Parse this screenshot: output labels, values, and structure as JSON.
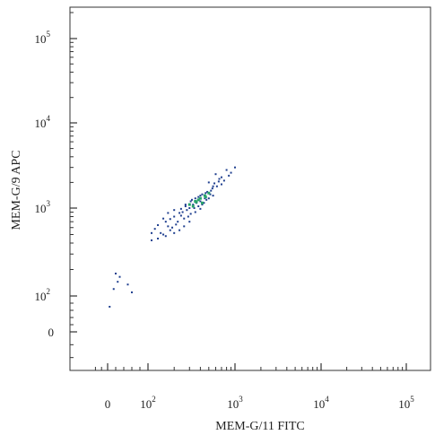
{
  "chart_data": {
    "type": "scatter",
    "title": "",
    "xlabel": "MEM-G/11 FITC",
    "ylabel": "MEM-G/9 APC",
    "x_scale": "biexponential",
    "y_scale": "biexponential",
    "xlim": [
      -50,
      200000
    ],
    "ylim": [
      -60,
      200000
    ],
    "x_ticks": [
      {
        "value": 0,
        "label": "0",
        "sup": ""
      },
      {
        "value": 100,
        "label": "10",
        "sup": "2"
      },
      {
        "value": 1000,
        "label": "10",
        "sup": "3"
      },
      {
        "value": 10000,
        "label": "10",
        "sup": "4"
      },
      {
        "value": 100000,
        "label": "10",
        "sup": "5"
      }
    ],
    "y_ticks": [
      {
        "value": 0,
        "label": "0",
        "sup": ""
      },
      {
        "value": 100,
        "label": "10",
        "sup": "2"
      },
      {
        "value": 1000,
        "label": "10",
        "sup": "3"
      },
      {
        "value": 10000,
        "label": "10",
        "sup": "4"
      },
      {
        "value": 100000,
        "label": "10",
        "sup": "5"
      }
    ],
    "grid": false,
    "legend": "none",
    "colors": {
      "sparse": "#1f3f8f",
      "dense": "#27a36a",
      "axis": "#333333"
    },
    "points": [
      [
        1000,
        3000
      ],
      [
        600,
        2500
      ],
      [
        700,
        2300
      ],
      [
        500,
        2000
      ],
      [
        550,
        1700
      ],
      [
        650,
        2050
      ],
      [
        480,
        1550
      ],
      [
        420,
        1450
      ],
      [
        380,
        1350
      ],
      [
        450,
        1300
      ],
      [
        520,
        1450
      ],
      [
        560,
        1400
      ],
      [
        400,
        1200
      ],
      [
        360,
        1150
      ],
      [
        330,
        1100
      ],
      [
        470,
        1250
      ],
      [
        420,
        1100
      ],
      [
        300,
        1000
      ],
      [
        280,
        950
      ],
      [
        340,
        1000
      ],
      [
        250,
        900
      ],
      [
        230,
        880
      ],
      [
        260,
        760
      ],
      [
        310,
        860
      ],
      [
        200,
        800
      ],
      [
        180,
        750
      ],
      [
        160,
        700
      ],
      [
        210,
        650
      ],
      [
        190,
        600
      ],
      [
        150,
        500
      ],
      [
        140,
        520
      ],
      [
        230,
        560
      ],
      [
        170,
        620
      ],
      [
        130,
        450
      ],
      [
        200,
        520
      ],
      [
        110,
        430
      ],
      [
        900,
        2600
      ],
      [
        800,
        2800
      ],
      [
        750,
        2100
      ],
      [
        620,
        1800
      ],
      [
        580,
        1950
      ],
      [
        350,
        1300
      ],
      [
        310,
        1200
      ],
      [
        270,
        1050
      ],
      [
        240,
        980
      ],
      [
        350,
        900
      ],
      [
        400,
        980
      ],
      [
        300,
        700
      ],
      [
        260,
        620
      ],
      [
        220,
        700
      ],
      [
        180,
        560
      ],
      [
        160,
        480
      ],
      [
        240,
        820
      ],
      [
        290,
        800
      ],
      [
        380,
        1050
      ],
      [
        440,
        1150
      ],
      [
        500,
        1300
      ],
      [
        530,
        1600
      ],
      [
        460,
        1500
      ],
      [
        400,
        1400
      ],
      [
        320,
        1250
      ],
      [
        270,
        1100
      ],
      [
        200,
        950
      ],
      [
        170,
        880
      ],
      [
        150,
        760
      ],
      [
        130,
        640
      ],
      [
        120,
        580
      ],
      [
        110,
        520
      ],
      [
        700,
        1900
      ],
      [
        660,
        2200
      ],
      [
        560,
        1800
      ],
      [
        850,
        2400
      ],
      [
        20,
        180
      ],
      [
        15,
        120
      ],
      [
        30,
        165
      ],
      [
        25,
        145
      ],
      [
        50,
        135
      ],
      [
        60,
        110
      ],
      [
        5,
        70
      ]
    ],
    "dense_points": [
      [
        350,
        1200
      ],
      [
        400,
        1300
      ],
      [
        450,
        1400
      ],
      [
        300,
        1100
      ],
      [
        380,
        1250
      ],
      [
        420,
        1150
      ],
      [
        500,
        1500
      ],
      [
        330,
        1050
      ],
      [
        460,
        1350
      ],
      [
        360,
        1180
      ]
    ]
  }
}
